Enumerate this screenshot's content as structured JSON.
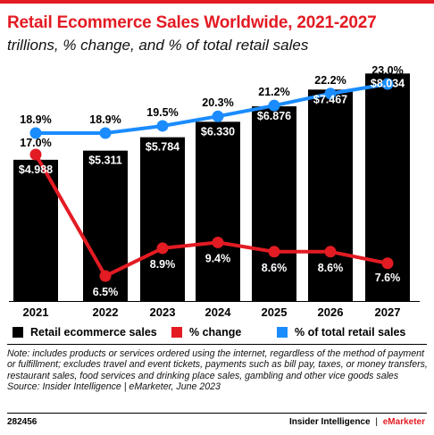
{
  "header": {
    "title": "Retail Ecommerce Sales Worldwide, 2021-2027",
    "subtitle": "trillions, % change, and % of total retail sales"
  },
  "legend": [
    {
      "label": "Retail ecommerce sales",
      "color": "#000000"
    },
    {
      "label": "% change",
      "color": "#e31b23"
    },
    {
      "label": "% of total retail sales",
      "color": "#1a8cff"
    }
  ],
  "chart_data": {
    "type": "bar",
    "categories": [
      "2021",
      "2022",
      "2023",
      "2024",
      "2025",
      "2026",
      "2027"
    ],
    "series": [
      {
        "name": "Retail ecommerce sales",
        "type": "bar",
        "values": [
          4.988,
          5.311,
          5.784,
          6.33,
          6.876,
          7.467,
          8.034
        ],
        "labels": [
          "$4.988",
          "$5.311",
          "$5.784",
          "$6.330",
          "$6.876",
          "$7.467",
          "$8.034"
        ],
        "color": "#000000"
      },
      {
        "name": "% change",
        "type": "line",
        "values": [
          17.0,
          6.5,
          8.9,
          9.4,
          8.6,
          8.6,
          7.6
        ],
        "labels": [
          "17.0%",
          "6.5%",
          "8.9%",
          "9.4%",
          "8.6%",
          "8.6%",
          "7.6%"
        ],
        "color": "#e31b23"
      },
      {
        "name": "% of total retail sales",
        "type": "line",
        "values": [
          18.9,
          18.9,
          19.5,
          20.3,
          21.2,
          22.2,
          23.0
        ],
        "labels": [
          "18.9%",
          "18.9%",
          "19.5%",
          "20.3%",
          "21.2%",
          "22.2%",
          "23.0%"
        ],
        "color": "#1a8cff"
      }
    ]
  },
  "notes": {
    "text": "Note: includes products or services ordered using the internet, regardless of the method of payment or fulfillment; excludes travel and event tickets, payments such as bill pay, taxes, or money transfers, restaurant sales, food services and drinking place sales, gambling and other vice goods sales",
    "source": "Source: Insider Intelligence | eMarketer, June 2023"
  },
  "footer": {
    "chart_id": "282456",
    "brand_primary": "Insider Intelligence",
    "brand_separator": "|",
    "brand_secondary": "eMarketer"
  }
}
